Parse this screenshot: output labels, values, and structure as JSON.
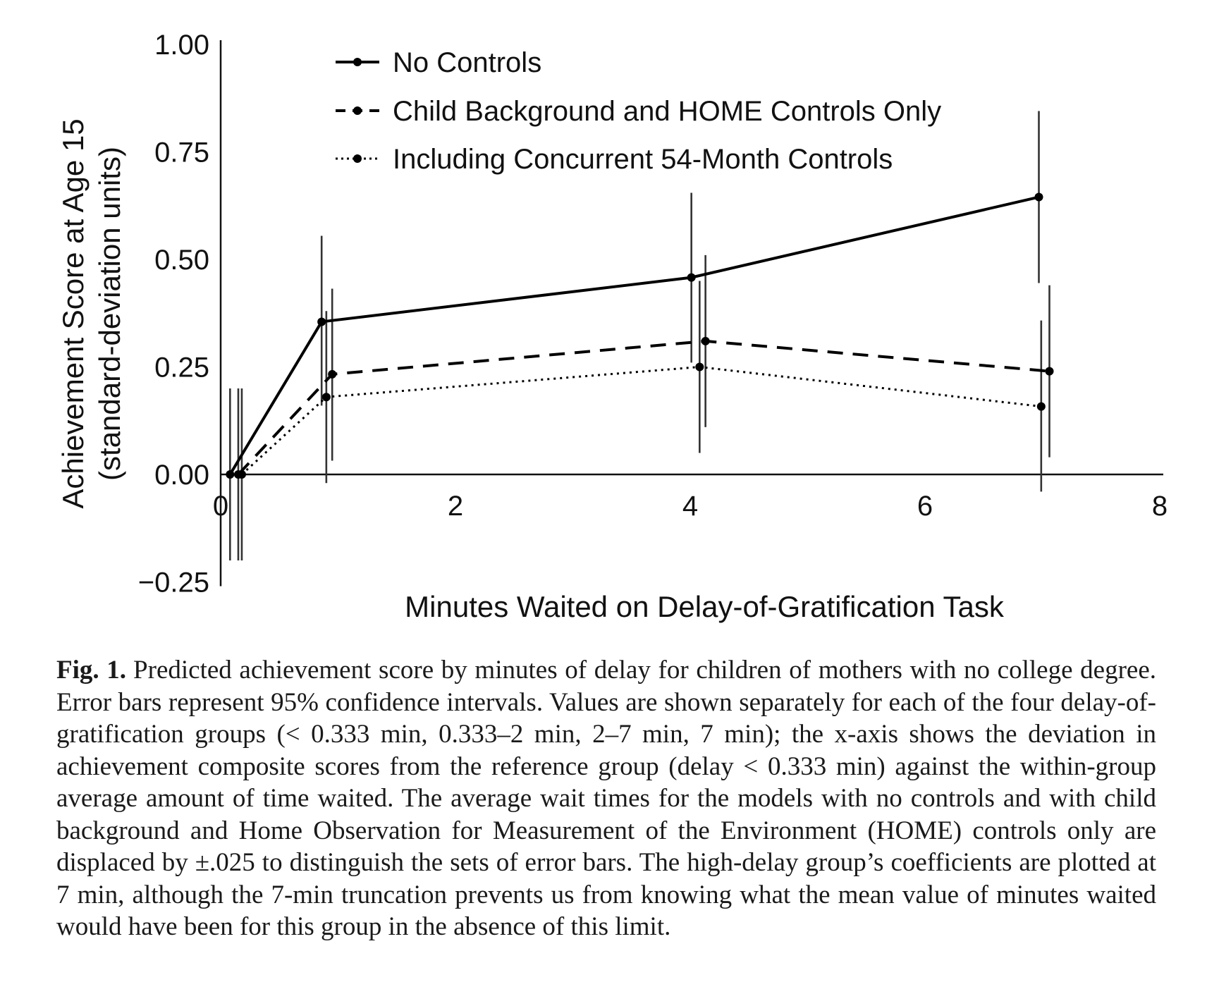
{
  "chart_data": {
    "type": "line",
    "xlabel": "Minutes Waited on Delay-of-Gratification Task",
    "ylabel": [
      "Achievement Score at Age 15",
      "(standard-deviation units)"
    ],
    "xlim": [
      0,
      8
    ],
    "ylim": [
      -0.25,
      1.0
    ],
    "xticks": [
      "0",
      "2",
      "4",
      "6",
      "8"
    ],
    "yticks": [
      "1.00",
      "0.75",
      "0.50",
      "0.25",
      "0.00",
      "−0.25"
    ],
    "ytick_values": [
      1.0,
      0.75,
      0.5,
      0.25,
      0.0,
      -0.25
    ],
    "legend_position": "top-left",
    "series": [
      {
        "name": "No Controls",
        "style": "solid",
        "x": [
          0.08,
          0.86,
          4.01,
          6.97
        ],
        "y": [
          0.0,
          0.355,
          0.458,
          0.645
        ],
        "ci_low": [
          -0.2,
          0.16,
          0.26,
          0.445
        ],
        "ci_high": [
          0.2,
          0.555,
          0.655,
          0.845
        ]
      },
      {
        "name": "Child Background and HOME Controls Only",
        "style": "dashed",
        "x": [
          0.15,
          0.95,
          4.13,
          7.06
        ],
        "y": [
          0.0,
          0.233,
          0.31,
          0.24
        ],
        "ci_low": [
          -0.2,
          0.032,
          0.11,
          0.04
        ],
        "ci_high": [
          0.2,
          0.432,
          0.51,
          0.44
        ]
      },
      {
        "name": "Including Concurrent 54-Month Controls",
        "style": "dotted",
        "x": [
          0.18,
          0.9,
          4.08,
          6.99
        ],
        "y": [
          0.0,
          0.18,
          0.25,
          0.158
        ],
        "ci_low": [
          -0.2,
          -0.02,
          0.05,
          -0.04
        ],
        "ci_high": [
          0.2,
          0.38,
          0.45,
          0.358
        ]
      }
    ]
  },
  "caption": {
    "label": "Fig. 1.",
    "text": "Predicted achievement score by minutes of delay for children of mothers with no college degree. Error bars represent 95% confidence intervals. Values are shown separately for each of the four delay-of-gratification groups (< 0.333 min, 0.333–2 min, 2–7 min, 7 min); the x-axis shows the deviation in achievement composite scores from the reference group (delay < 0.333 min) against the within-group average amount of time waited. The average wait times for the models with no controls and with child background and Home Observation for Measurement of the Environment (HOME) controls only are displaced by ±.025 to distinguish the sets of error bars. The high-delay group’s coefficients are plotted at 7 min, although the 7-min truncation prevents us from knowing what the mean value of minutes waited would have been for this group in the absence of this limit."
  }
}
